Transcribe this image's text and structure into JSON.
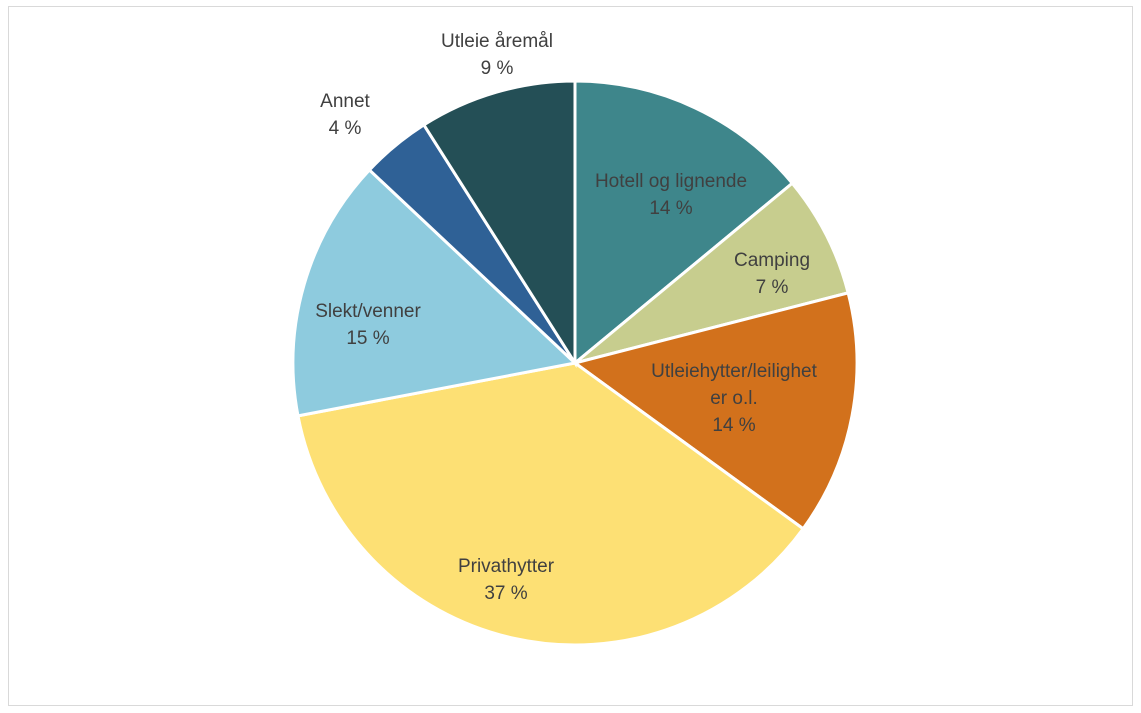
{
  "chart_data": {
    "type": "pie",
    "title": "",
    "start_angle_deg": 0,
    "direction": "clockwise",
    "slices": [
      {
        "key": "hotell",
        "label": "Hotell og lignende",
        "label_lines": [
          "Hotell og lignende"
        ],
        "value": 14,
        "display": "14 %",
        "color": "#3e868b"
      },
      {
        "key": "camping",
        "label": "Camping",
        "label_lines": [
          "Camping"
        ],
        "value": 7,
        "display": "7 %",
        "color": "#c7cd8e"
      },
      {
        "key": "utleiehytter",
        "label": "Utleiehytter/leiligheter o.l.",
        "label_lines": [
          "Utleiehytter/leilighet",
          "er o.l."
        ],
        "value": 14,
        "display": "14 %",
        "color": "#d2711c"
      },
      {
        "key": "privathytter",
        "label": "Privathytter",
        "label_lines": [
          "Privathytter"
        ],
        "value": 37,
        "display": "37 %",
        "color": "#fde074"
      },
      {
        "key": "slekt",
        "label": "Slekt/venner",
        "label_lines": [
          "Slekt/venner"
        ],
        "value": 15,
        "display": "15 %",
        "color": "#8ecbde"
      },
      {
        "key": "annet",
        "label": "Annet",
        "label_lines": [
          "Annet"
        ],
        "value": 4,
        "display": "4 %",
        "color": "#2f6196"
      },
      {
        "key": "utleie_aremal",
        "label": "Utleie åremål",
        "label_lines": [
          "Utleie åremål"
        ],
        "value": 9,
        "display": "9 %",
        "color": "#244f56"
      }
    ]
  }
}
